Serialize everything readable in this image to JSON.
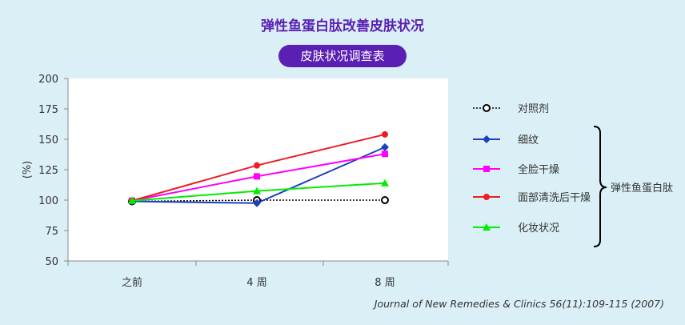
{
  "title": "弹性鱼蛋白肽改善皮肤状况",
  "subtitle": "皮肤状况调查表",
  "source": "Journal of New Remedies & Clinics 56(11):109-115 (2007)",
  "chart_data": {
    "type": "line",
    "title": "弹性鱼蛋白肽改善皮肤状况",
    "ylabel": "(%)",
    "xlabel": "",
    "categories": [
      "之前",
      "4 周",
      "8 周"
    ],
    "ylim": [
      50,
      200
    ],
    "yticks": [
      "50",
      "75",
      "100",
      "125",
      "150",
      "175",
      "200"
    ],
    "grid": false,
    "legend_position": "right",
    "bracket_label": "弹性鱼蛋白肽",
    "series": [
      {
        "name": "对照剂",
        "values": [
          99,
          100,
          100
        ],
        "color": "#000000",
        "marker": "open-circle",
        "dash": true
      },
      {
        "name": "细纹",
        "values": [
          99,
          97.5,
          143.5
        ],
        "color": "#1f3fbf",
        "marker": "diamond"
      },
      {
        "name": "全脸干燥",
        "values": [
          99.5,
          119.5,
          138
        ],
        "color": "#ff00ff",
        "marker": "square"
      },
      {
        "name": "面部清洗后干燥",
        "values": [
          99.5,
          128.5,
          154
        ],
        "color": "#ee1c24",
        "marker": "circle"
      },
      {
        "name": "化妆状况",
        "values": [
          99.5,
          107.5,
          114
        ],
        "color": "#00ee00",
        "marker": "triangle"
      }
    ]
  }
}
